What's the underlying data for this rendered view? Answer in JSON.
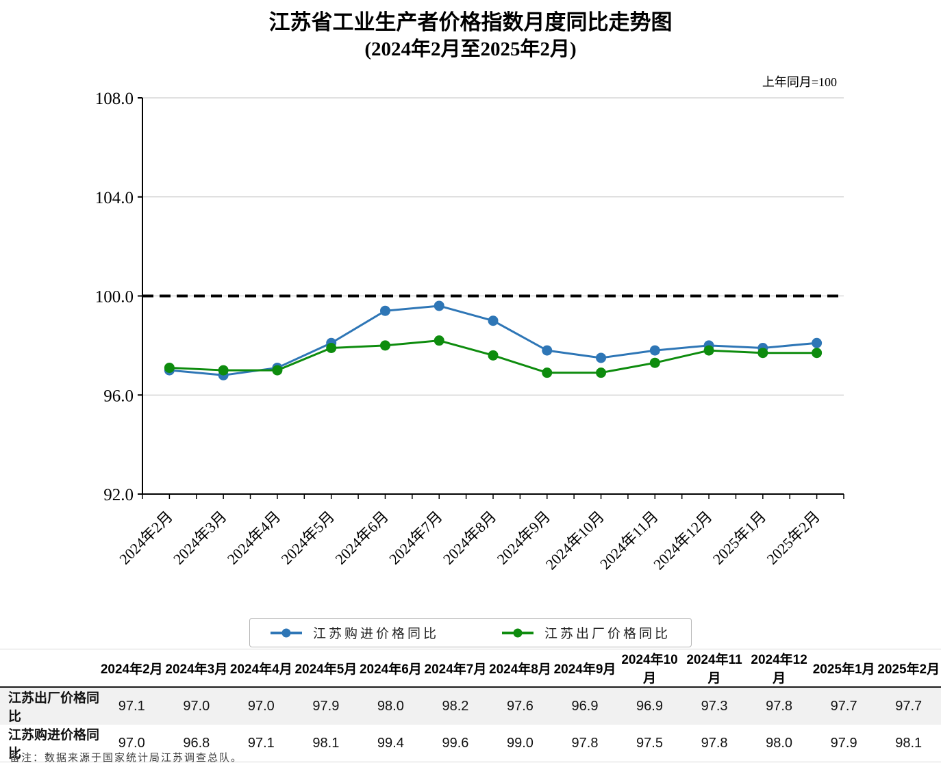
{
  "title": {
    "line1": "江苏省工业生产者价格指数月度同比走势图",
    "line2": "(2024年2月至2025年2月)"
  },
  "axis_note": "上年同月=100",
  "chart_data": {
    "type": "line",
    "categories": [
      "2024年2月",
      "2024年3月",
      "2024年4月",
      "2024年5月",
      "2024年6月",
      "2024年7月",
      "2024年8月",
      "2024年9月",
      "2024年10月",
      "2024年11月",
      "2024年12月",
      "2025年1月",
      "2025年2月"
    ],
    "series": [
      {
        "name": "江苏购进价格同比",
        "color": "#2e76b6",
        "values": [
          97.0,
          96.8,
          97.1,
          98.1,
          99.4,
          99.6,
          99.0,
          97.8,
          97.5,
          97.8,
          98.0,
          97.9,
          98.1
        ]
      },
      {
        "name": "江苏出厂价格同比",
        "color": "#0e8c0e",
        "values": [
          97.1,
          97.0,
          97.0,
          97.9,
          98.0,
          98.2,
          97.6,
          96.9,
          96.9,
          97.3,
          97.8,
          97.7,
          97.7
        ]
      }
    ],
    "ylim": [
      92.0,
      108.0
    ],
    "yticks": [
      92.0,
      96.0,
      100.0,
      104.0,
      108.0
    ],
    "ytick_labels": [
      "92.0",
      "96.0",
      "100.0",
      "104.0",
      "108.0"
    ],
    "reference_line": 100.0,
    "grid": true,
    "legend_position": "bottom",
    "grid_color": "#c0c0c0",
    "axis_color": "#000000",
    "reference_line_color": "#000000"
  },
  "table": {
    "corner_label": "",
    "rows": [
      {
        "label": "江苏出厂价格同比",
        "values": [
          "97.1",
          "97.0",
          "97.0",
          "97.9",
          "98.0",
          "98.2",
          "97.6",
          "96.9",
          "96.9",
          "97.3",
          "97.8",
          "97.7",
          "97.7"
        ]
      },
      {
        "label": "江苏购进价格同比",
        "values": [
          "97.0",
          "96.8",
          "97.1",
          "98.1",
          "99.4",
          "99.6",
          "99.0",
          "97.8",
          "97.5",
          "97.8",
          "98.0",
          "97.9",
          "98.1"
        ]
      }
    ]
  },
  "footnote": "备注：数据来源于国家统计局江苏调查总队。"
}
